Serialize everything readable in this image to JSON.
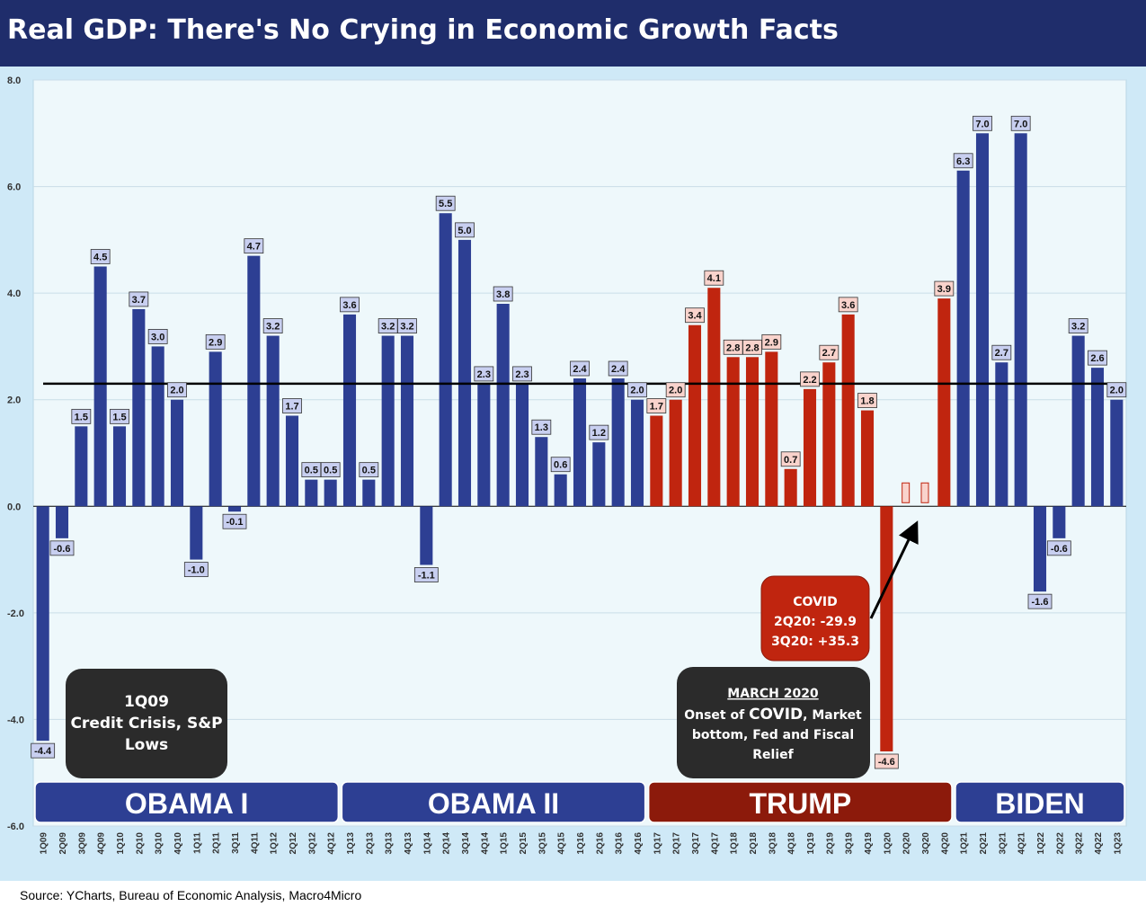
{
  "title": "Real GDP: There's No Crying in Economic Growth Facts",
  "source": "Source: YCharts, Bureau of Economic Analysis, Macro4Micro",
  "colors": {
    "title_bg": "#1f2d6b",
    "panel_bg": "#cfe9f7",
    "plot_bg": "#eef8fb",
    "blue_bar": "#2d3f93",
    "red_bar": "#c0250f",
    "blue_label_bg": "#c8cff0",
    "red_label_bg": "#f9d3cc",
    "trump_bar": "#8c1a0b",
    "callout_dark": "#2b2b2b",
    "callout_red": "#c0250f"
  },
  "chart_data": {
    "type": "bar",
    "title": "Real GDP: There's No Crying in Economic Growth Facts",
    "ylim": [
      -6.0,
      8.0
    ],
    "yticks": [
      "8.0",
      "6.0",
      "4.0",
      "2.0",
      "0.0",
      "-2.0",
      "-4.0",
      "-6.0"
    ],
    "grid": true,
    "reference_line": 2.3,
    "categories": [
      "1Q09",
      "2Q09",
      "3Q09",
      "4Q09",
      "1Q10",
      "2Q10",
      "3Q10",
      "4Q10",
      "1Q11",
      "2Q11",
      "3Q11",
      "4Q11",
      "1Q12",
      "2Q12",
      "3Q12",
      "4Q12",
      "1Q13",
      "2Q13",
      "3Q13",
      "4Q13",
      "1Q14",
      "2Q14",
      "3Q14",
      "4Q14",
      "1Q15",
      "2Q15",
      "3Q15",
      "4Q15",
      "1Q16",
      "2Q16",
      "3Q16",
      "4Q16",
      "1Q17",
      "2Q17",
      "3Q17",
      "4Q17",
      "1Q18",
      "2Q18",
      "3Q18",
      "4Q18",
      "1Q19",
      "2Q19",
      "3Q19",
      "4Q19",
      "1Q20",
      "2Q20",
      "3Q20",
      "4Q20",
      "1Q21",
      "2Q21",
      "3Q21",
      "4Q21",
      "1Q22",
      "2Q22",
      "3Q22",
      "4Q22",
      "1Q23"
    ],
    "values": [
      -4.4,
      -0.6,
      1.5,
      4.5,
      1.5,
      3.7,
      3.0,
      2.0,
      -1.0,
      2.9,
      -0.1,
      4.7,
      3.2,
      1.7,
      0.5,
      0.5,
      3.6,
      0.5,
      3.2,
      3.2,
      -1.1,
      5.5,
      5.0,
      2.3,
      3.8,
      2.3,
      1.3,
      0.6,
      2.4,
      1.2,
      2.4,
      2.0,
      1.7,
      2.0,
      3.4,
      4.1,
      2.8,
      2.8,
      2.9,
      0.7,
      2.2,
      2.7,
      3.6,
      1.8,
      -4.6,
      null,
      null,
      3.9,
      6.3,
      7.0,
      2.7,
      7.0,
      -1.6,
      -0.6,
      3.2,
      2.6,
      2.0
    ],
    "labels": [
      "-4.4",
      "-0.6",
      "1.5",
      "4.5",
      "1.5",
      "3.7",
      "3.0",
      "2.0",
      "-1.0",
      "2.9",
      "-0.1",
      "4.7",
      "3.2",
      "1.7",
      "0.5",
      "0.5",
      "3.6",
      "0.5",
      "3.2",
      "3.2",
      "-1.1",
      "5.5",
      "5.0",
      "2.3",
      "3.8",
      "2.3",
      "1.3",
      "0.6",
      "2.4",
      "1.2",
      "2.4",
      "2.0",
      "1.7",
      "2.0",
      "3.4",
      "4.1",
      "2.8",
      "2.8",
      "2.9",
      "0.7",
      "2.2",
      "2.7",
      "3.6",
      "1.8",
      "-4.6",
      "",
      "",
      "3.9",
      "6.3",
      "7.0",
      "2.7",
      "7.0",
      "-1.6",
      "-0.6",
      "3.2",
      "2.6",
      "2.0"
    ],
    "colors_by_index": [
      "b",
      "b",
      "b",
      "b",
      "b",
      "b",
      "b",
      "b",
      "b",
      "b",
      "b",
      "b",
      "b",
      "b",
      "b",
      "b",
      "b",
      "b",
      "b",
      "b",
      "b",
      "b",
      "b",
      "b",
      "b",
      "b",
      "b",
      "b",
      "b",
      "b",
      "b",
      "b",
      "r",
      "r",
      "r",
      "r",
      "r",
      "r",
      "r",
      "r",
      "r",
      "r",
      "r",
      "r",
      "r",
      "r",
      "r",
      "r",
      "b",
      "b",
      "b",
      "b",
      "b",
      "b",
      "b",
      "b",
      "b"
    ],
    "eras": [
      {
        "name": "OBAMA I",
        "from": "1Q09",
        "to": "4Q12",
        "color": "blue"
      },
      {
        "name": "OBAMA II",
        "from": "1Q13",
        "to": "4Q16",
        "color": "blue"
      },
      {
        "name": "TRUMP",
        "from": "1Q17",
        "to": "4Q20",
        "color": "red"
      },
      {
        "name": "BIDEN",
        "from": "1Q21",
        "to": "1Q23",
        "color": "blue"
      }
    ]
  },
  "callouts": {
    "credit_crisis": {
      "line1": "1Q09",
      "line2": "Credit Crisis, S&P",
      "line3": "Lows"
    },
    "march_2020": {
      "heading": "MARCH 2020",
      "line1a": "Onset of ",
      "line1b": "COVID",
      "line1c": ", Market",
      "line2": "bottom, Fed and Fiscal",
      "line3": "Relief"
    },
    "covid": {
      "line1": "COVID",
      "line2": "2Q20: -29.9",
      "line3": "3Q20: +35.3"
    }
  }
}
